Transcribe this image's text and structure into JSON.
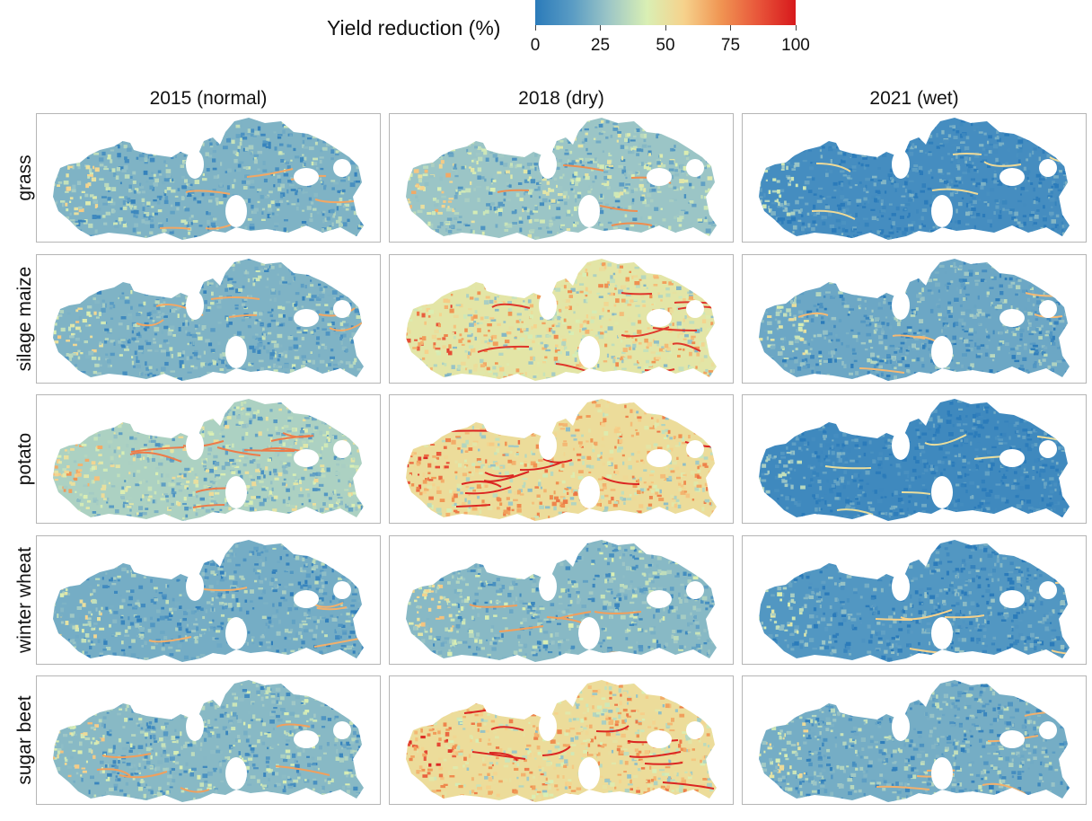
{
  "legend": {
    "title": "Yield reduction (%)",
    "ticks": [
      "0",
      "25",
      "50",
      "75",
      "100"
    ],
    "tick_values": [
      0,
      25,
      50,
      75,
      100
    ],
    "range": [
      0,
      100
    ],
    "colormap": [
      "#2b7bba",
      "#5a9cc4",
      "#9ec7c6",
      "#d9efb4",
      "#f6d28c",
      "#f09452",
      "#e8553a",
      "#d7191c"
    ]
  },
  "columns": [
    "2015 (normal)",
    "2018 (dry)",
    "2021 (wet)"
  ],
  "rows": [
    "grass",
    "silage maize",
    "potato",
    "winter wheat",
    "sugar beet"
  ],
  "map_data": {
    "type": "choropleth",
    "value": "Yield reduction (%)",
    "approx_mean_reduction": [
      {
        "crop": "grass",
        "2015 (normal)": 22,
        "2018 (dry)": 28,
        "2021 (wet)": 8
      },
      {
        "crop": "silage maize",
        "2015 (normal)": 22,
        "2018 (dry)": 48,
        "2021 (wet)": 18
      },
      {
        "crop": "potato",
        "2015 (normal)": 32,
        "2018 (dry)": 52,
        "2021 (wet)": 6
      },
      {
        "crop": "winter wheat",
        "2015 (normal)": 20,
        "2018 (dry)": 24,
        "2021 (wet)": 12
      },
      {
        "crop": "sugar beet",
        "2015 (normal)": 24,
        "2018 (dry)": 52,
        "2021 (wet)": 20
      }
    ]
  }
}
